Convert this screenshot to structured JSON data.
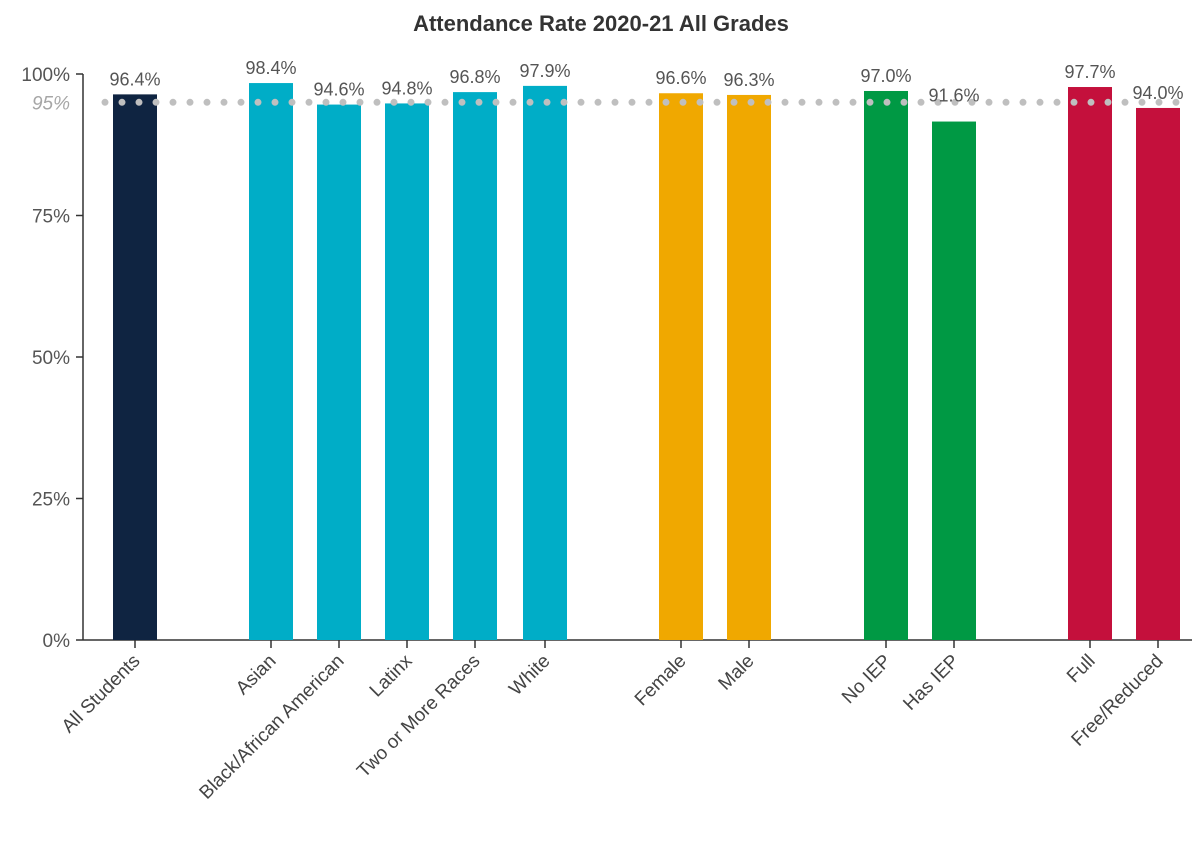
{
  "chart_data": {
    "type": "bar",
    "title": "Attendance Rate 2020-21 All Grades",
    "xlabel": "",
    "ylabel": "",
    "ylim": [
      0,
      100
    ],
    "y_ticks": [
      {
        "value": 0,
        "label": "0%"
      },
      {
        "value": 25,
        "label": "25%"
      },
      {
        "value": 50,
        "label": "50%"
      },
      {
        "value": 75,
        "label": "75%"
      },
      {
        "value": 100,
        "label": "100%"
      }
    ],
    "reference_line": {
      "value": 95,
      "label": "95%",
      "style": "dotted",
      "color": "#bfbfbf"
    },
    "grid": false,
    "legend": "none",
    "bars": [
      {
        "category": "All Students",
        "value": 96.4,
        "label": "96.4%",
        "color": "#0f2441",
        "group": 0
      },
      {
        "category": "Asian",
        "value": 98.4,
        "label": "98.4%",
        "color": "#00adc7",
        "group": 1
      },
      {
        "category": "Black/African American",
        "value": 94.6,
        "label": "94.6%",
        "color": "#00adc7",
        "group": 1
      },
      {
        "category": "Latinx",
        "value": 94.8,
        "label": "94.8%",
        "color": "#00adc7",
        "group": 1
      },
      {
        "category": "Two or More Races",
        "value": 96.8,
        "label": "96.8%",
        "color": "#00adc7",
        "group": 1
      },
      {
        "category": "White",
        "value": 97.9,
        "label": "97.9%",
        "color": "#00adc7",
        "group": 1
      },
      {
        "category": "Female",
        "value": 96.6,
        "label": "96.6%",
        "color": "#f0a800",
        "group": 2
      },
      {
        "category": "Male",
        "value": 96.3,
        "label": "96.3%",
        "color": "#f0a800",
        "group": 2
      },
      {
        "category": "No IEP",
        "value": 97.0,
        "label": "97.0%",
        "color": "#009944",
        "group": 3
      },
      {
        "category": "Has IEP",
        "value": 91.6,
        "label": "91.6%",
        "color": "#009944",
        "group": 3
      },
      {
        "category": "Full",
        "value": 97.7,
        "label": "97.7%",
        "color": "#c4103c",
        "group": 4
      },
      {
        "category": "Free/Reduced",
        "value": 94.0,
        "label": "94.0%",
        "color": "#c4103c",
        "group": 4
      }
    ]
  }
}
